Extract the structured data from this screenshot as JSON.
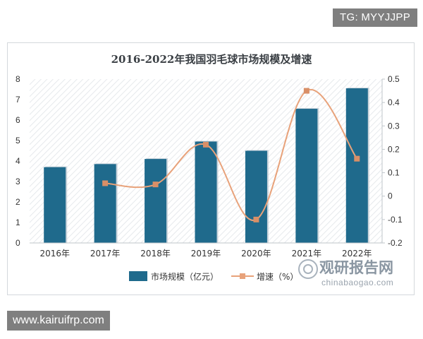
{
  "watermark_top": "TG: MYYJJPP",
  "watermark_bottom": "www.kairuifrp.com",
  "logo": {
    "brand": "观研报告网",
    "site": "chinabaogao.com"
  },
  "chart_data": {
    "type": "bar",
    "title": "2016-2022年我国羽毛球市场规模及增速",
    "categories": [
      "2016年",
      "2017年",
      "2018年",
      "2019年",
      "2020年",
      "2021年",
      "2022年"
    ],
    "series": [
      {
        "name": "市场规模（亿元）",
        "type": "bar",
        "axis": "left",
        "color": "#1f6a8c",
        "values": [
          3.7,
          3.85,
          4.1,
          4.95,
          4.5,
          6.55,
          7.55
        ]
      },
      {
        "name": "增速（%）",
        "type": "line",
        "axis": "right",
        "color": "#e8a27a",
        "values": [
          null,
          0.055,
          0.05,
          0.22,
          -0.1,
          0.45,
          0.16
        ]
      }
    ],
    "y_left": {
      "min": 0,
      "max": 8,
      "ticks": [
        "0",
        "1",
        "2",
        "3",
        "4",
        "5",
        "6",
        "7",
        "8"
      ]
    },
    "y_right": {
      "min": -0.2,
      "max": 0.5,
      "ticks": [
        "-0.2",
        "-0.1",
        "0",
        "0.1",
        "0.2",
        "0.3",
        "0.4",
        "0.5"
      ]
    },
    "legend_position": "bottom",
    "grid": false
  }
}
